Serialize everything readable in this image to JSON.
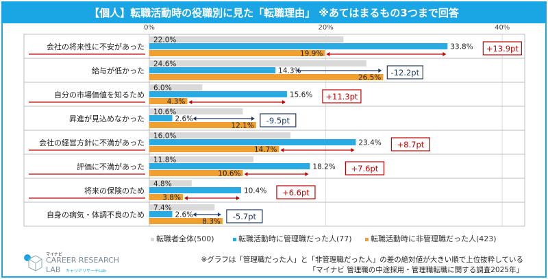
{
  "title": "【個人】転職活動時の役職別に見た「転職理由」 ※あてはまるもの3つまで回答",
  "chart_data": {
    "type": "bar",
    "orientation": "horizontal",
    "xlim": [
      0,
      43
    ],
    "x_ticks": [
      "0%",
      "20%",
      "40%"
    ],
    "categories": [
      "会社の将来性に不安があった",
      "給与が低かった",
      "自分の市場価値を知るため",
      "昇進が見込めなかった",
      "会社の経営方針に不満があった",
      "評価に不満があった",
      "将来の保険のため",
      "自身の病気・体調不良のため"
    ],
    "series": [
      {
        "name": "転職者全体(500)",
        "color": "#d9d9d9",
        "values": [
          22.0,
          24.6,
          6.0,
          10.6,
          16.0,
          11.8,
          4.8,
          7.4
        ]
      },
      {
        "name": "転職活動時に管理職だった人(77)",
        "color": "#2aaae2",
        "values": [
          33.8,
          14.3,
          15.6,
          2.6,
          23.4,
          18.2,
          10.4,
          2.6
        ]
      },
      {
        "name": "転職活動時に非管理職だった人(423)",
        "color": "#f0a030",
        "values": [
          19.9,
          26.5,
          4.3,
          12.1,
          14.7,
          10.6,
          3.8,
          8.3
        ]
      }
    ],
    "differences": [
      "+13.9pt",
      "-12.2pt",
      "+11.3pt",
      "-9.5pt",
      "+8.7pt",
      "+7.6pt",
      "+6.6pt",
      "-5.7pt"
    ],
    "grid": true,
    "legend": "bottom"
  },
  "colors": {
    "positive": "#c00000",
    "negative": "#1f3864",
    "accent": "#1aa6e4"
  },
  "notes": [
    "※グラフは「管理職だった人」と「非管理職だった人」の差の絶対値が大きい順で上位抜粋している",
    "「マイナビ 管理職の中途採用・管理職転職に関する調査2025年」"
  ],
  "logo": {
    "top": "マイナビ",
    "main1": "CAREER RESEARCH",
    "main2": "LAB",
    "sub": "キャリアリサーチLab"
  }
}
